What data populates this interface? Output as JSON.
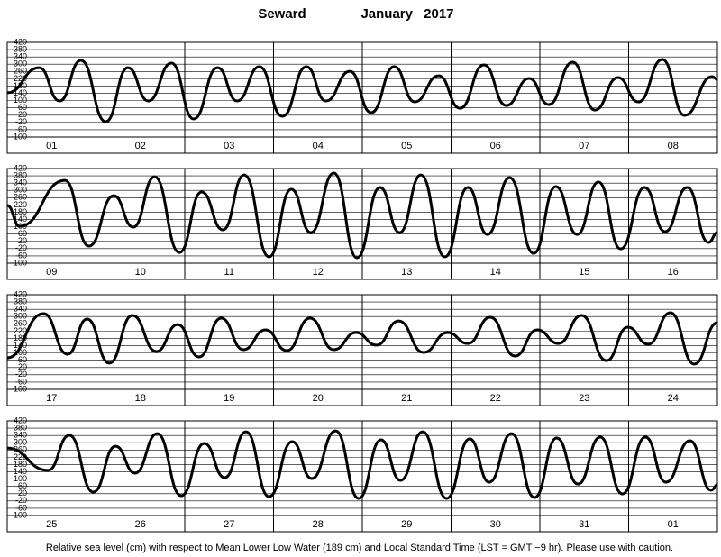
{
  "station": "Seward",
  "period": "January 2017",
  "note": "Relative sea level (cm) with respect to Mean Lower Low Water (189 cm) and Local Standard Time (LST = GMT −9 hr). Please use with caution.",
  "chart_data": [
    {
      "type": "line",
      "color": "#000000",
      "xlim": [
        0,
        8
      ],
      "ylim": [
        -100,
        420
      ],
      "yticks": [
        -100,
        -60,
        -20,
        20,
        60,
        100,
        140,
        180,
        220,
        260,
        300,
        340,
        380,
        420
      ],
      "day_labels": [
        "01",
        "02",
        "03",
        "04",
        "05",
        "06",
        "07",
        "08"
      ],
      "x": [
        0,
        0.36,
        0.59,
        0.83,
        1.11,
        1.36,
        1.59,
        1.85,
        2.1,
        2.37,
        2.59,
        2.84,
        3.1,
        3.37,
        3.59,
        3.86,
        4.1,
        4.36,
        4.59,
        4.86,
        5.1,
        5.37,
        5.62,
        5.88,
        6.1,
        6.37,
        6.62,
        6.88,
        7.11,
        7.38,
        7.63,
        7.94,
        8
      ],
      "values": [
        143,
        281,
        98,
        321,
        -16,
        281,
        98,
        306,
        -1,
        281,
        98,
        286,
        14,
        286,
        98,
        261,
        34,
        286,
        93,
        237,
        58,
        296,
        73,
        222,
        78,
        311,
        48,
        227,
        93,
        326,
        19,
        232,
        217
      ]
    },
    {
      "type": "line",
      "color": "#000000",
      "xlim": [
        0,
        8
      ],
      "ylim": [
        -100,
        420
      ],
      "yticks": [
        -100,
        -60,
        -20,
        20,
        60,
        100,
        140,
        180,
        220,
        260,
        300,
        340,
        380,
        420
      ],
      "day_labels": [
        "09",
        "10",
        "11",
        "12",
        "13",
        "14",
        "15",
        "16"
      ],
      "x": [
        0,
        0.14,
        0.65,
        0.92,
        1.2,
        1.42,
        1.66,
        1.94,
        2.19,
        2.43,
        2.67,
        2.95,
        3.2,
        3.42,
        3.68,
        3.94,
        4.2,
        4.42,
        4.66,
        4.93,
        5.19,
        5.41,
        5.66,
        5.93,
        6.18,
        6.42,
        6.66,
        6.91,
        7.18,
        7.41,
        7.66,
        7.9,
        8
      ],
      "values": [
        217,
        103,
        355,
        -6,
        271,
        98,
        375,
        -41,
        291,
        83,
        385,
        -65,
        306,
        68,
        395,
        -70,
        316,
        68,
        385,
        -65,
        316,
        58,
        370,
        -46,
        321,
        58,
        346,
        -21,
        316,
        73,
        316,
        14,
        68
      ]
    },
    {
      "type": "line",
      "color": "#000000",
      "xlim": [
        0,
        8
      ],
      "ylim": [
        -100,
        420
      ],
      "yticks": [
        -100,
        -60,
        -20,
        20,
        60,
        100,
        140,
        180,
        220,
        260,
        300,
        340,
        380,
        420
      ],
      "day_labels": [
        "17",
        "18",
        "19",
        "20",
        "21",
        "22",
        "23",
        "24"
      ],
      "x": [
        0,
        0.41,
        0.68,
        0.9,
        1.15,
        1.41,
        1.68,
        1.92,
        2.16,
        2.41,
        2.66,
        2.91,
        3.15,
        3.41,
        3.68,
        3.93,
        4.16,
        4.41,
        4.69,
        4.96,
        5.19,
        5.44,
        5.72,
        5.97,
        6.21,
        6.47,
        6.75,
        6.99,
        7.22,
        7.47,
        7.74,
        8
      ],
      "values": [
        73,
        316,
        93,
        286,
        44,
        306,
        108,
        256,
        78,
        291,
        118,
        227,
        113,
        291,
        118,
        212,
        143,
        276,
        103,
        212,
        152,
        296,
        83,
        227,
        152,
        306,
        58,
        242,
        148,
        321,
        39,
        266
      ]
    },
    {
      "type": "line",
      "color": "#000000",
      "xlim": [
        0,
        8
      ],
      "ylim": [
        -100,
        420
      ],
      "yticks": [
        -100,
        -60,
        -20,
        20,
        60,
        100,
        140,
        180,
        220,
        260,
        300,
        340,
        380,
        420
      ],
      "day_labels": [
        "25",
        "26",
        "27",
        "28",
        "29",
        "30",
        "31",
        "01"
      ],
      "x": [
        0,
        0.46,
        0.7,
        0.97,
        1.22,
        1.44,
        1.69,
        1.96,
        2.22,
        2.45,
        2.69,
        2.95,
        3.21,
        3.43,
        3.7,
        3.96,
        4.21,
        4.43,
        4.68,
        4.95,
        5.21,
        5.43,
        5.68,
        5.94,
        6.19,
        6.43,
        6.68,
        6.93,
        7.19,
        7.42,
        7.69,
        7.93,
        8
      ],
      "values": [
        271,
        148,
        341,
        29,
        281,
        133,
        350,
        9,
        296,
        108,
        360,
        4,
        306,
        103,
        365,
        -6,
        316,
        93,
        360,
        -6,
        321,
        83,
        350,
        -1,
        326,
        73,
        331,
        19,
        331,
        83,
        311,
        39,
        68
      ]
    }
  ]
}
